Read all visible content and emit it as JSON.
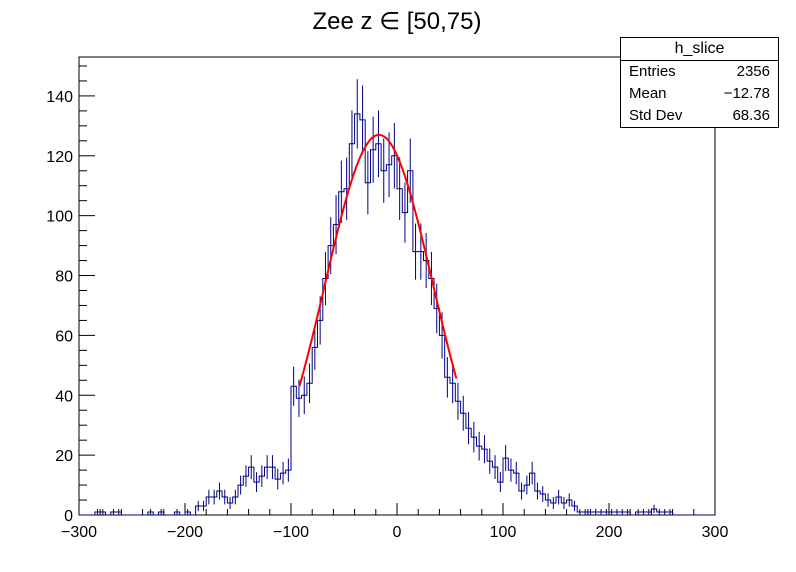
{
  "chart_data": {
    "type": "histogram",
    "title": "Zee z ∈ [50,75)",
    "xlabel": "",
    "ylabel": "",
    "xlim": [
      -300,
      300
    ],
    "ylim": [
      0,
      153
    ],
    "x_ticks": [
      -300,
      -200,
      -100,
      0,
      100,
      200,
      300
    ],
    "y_ticks": [
      0,
      20,
      40,
      60,
      80,
      100,
      120,
      140
    ],
    "x_tick_labels": [
      "−300",
      "−200",
      "−100",
      "0",
      "100",
      "200",
      "300"
    ],
    "y_tick_labels": [
      "0",
      "20",
      "40",
      "60",
      "80",
      "100",
      "120",
      "140"
    ],
    "bin_width": 5,
    "bin_start": -300,
    "series": [
      {
        "name": "h_slice",
        "color": "#000080",
        "values": [
          0,
          0,
          0,
          1,
          1,
          0,
          1,
          1,
          0,
          0,
          0,
          0,
          0,
          1,
          0,
          1,
          0,
          0,
          1,
          0,
          1,
          0,
          3,
          3,
          6,
          6,
          8,
          6,
          4,
          6,
          10,
          13,
          16,
          11,
          13,
          16,
          16,
          12,
          14,
          15,
          43,
          39,
          40,
          44,
          56,
          65,
          79,
          90,
          97,
          108,
          109,
          124,
          134,
          132,
          111,
          122,
          124,
          115,
          117,
          120,
          109,
          101,
          115,
          88,
          88,
          85,
          79,
          69,
          60,
          46,
          44,
          38,
          34,
          29,
          26,
          23,
          22,
          18,
          16,
          11,
          19,
          15,
          14,
          8,
          10,
          14,
          8,
          7,
          5,
          4,
          6,
          4,
          5,
          3,
          1,
          1,
          1,
          1,
          1,
          1,
          1,
          1,
          1,
          1,
          0,
          1,
          1,
          1,
          2,
          1,
          1,
          1,
          0,
          0,
          0,
          0,
          0,
          0,
          0,
          0
        ]
      }
    ],
    "fit": {
      "name": "gaus",
      "color": "#ff0000",
      "constant": 127,
      "mean": -17,
      "sigma": 51,
      "x_range": [
        -92,
        56
      ]
    },
    "stats": {
      "title": "h_slice",
      "rows": [
        {
          "label": "Entries",
          "value": "2356"
        },
        {
          "label": "Mean",
          "value": "−12.78"
        },
        {
          "label": "Std Dev",
          "value": "68.36"
        }
      ]
    }
  }
}
